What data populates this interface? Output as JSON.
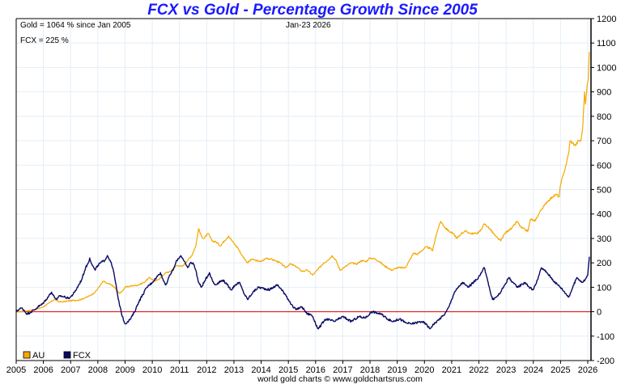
{
  "chart_data": {
    "type": "line",
    "title": "FCX vs Gold - Percentage Growth Since 2005",
    "xlabel": "",
    "ylabel": "",
    "xlim": [
      2005,
      2026.1
    ],
    "ylim": [
      -200,
      1200
    ],
    "grid": true,
    "legend_position": "bottom-left",
    "x_ticks": [
      "2005",
      "2006",
      "2007",
      "2008",
      "2009",
      "2010",
      "2011",
      "2012",
      "2013",
      "2014",
      "2015",
      "2016",
      "2017",
      "2018",
      "2019",
      "2020",
      "2021",
      "2022",
      "2023",
      "2024",
      "2025",
      "2026"
    ],
    "y_ticks": [
      "1200",
      "1100",
      "1000",
      "900",
      "800",
      "700",
      "600",
      "500",
      "400",
      "300",
      "200",
      "100",
      "0",
      "-100",
      "-200"
    ],
    "annotations": {
      "gold_summary": "Gold = 1064 % since Jan 2005",
      "fcx_summary": "FCX = 225 %",
      "date": "Jan-23  2026"
    },
    "credit": "world gold charts © www.goldchartsrus.com",
    "baseline": 0,
    "series": [
      {
        "name": "AU",
        "color": "#f5a800",
        "points": [
          [
            2005.0,
            0
          ],
          [
            2005.3,
            2
          ],
          [
            2005.5,
            5
          ],
          [
            2005.8,
            12
          ],
          [
            2006.0,
            20
          ],
          [
            2006.2,
            35
          ],
          [
            2006.4,
            50
          ],
          [
            2006.6,
            40
          ],
          [
            2006.8,
            42
          ],
          [
            2007.0,
            45
          ],
          [
            2007.3,
            48
          ],
          [
            2007.5,
            55
          ],
          [
            2007.7,
            65
          ],
          [
            2007.9,
            80
          ],
          [
            2008.1,
            110
          ],
          [
            2008.2,
            125
          ],
          [
            2008.35,
            115
          ],
          [
            2008.5,
            110
          ],
          [
            2008.65,
            95
          ],
          [
            2008.8,
            75
          ],
          [
            2008.9,
            85
          ],
          [
            2009.0,
            100
          ],
          [
            2009.2,
            105
          ],
          [
            2009.5,
            110
          ],
          [
            2009.7,
            120
          ],
          [
            2009.9,
            140
          ],
          [
            2010.1,
            125
          ],
          [
            2010.2,
            130
          ],
          [
            2010.4,
            150
          ],
          [
            2010.5,
            160
          ],
          [
            2010.7,
            165
          ],
          [
            2010.9,
            190
          ],
          [
            2011.1,
            185
          ],
          [
            2011.3,
            210
          ],
          [
            2011.45,
            230
          ],
          [
            2011.6,
            270
          ],
          [
            2011.7,
            340
          ],
          [
            2011.8,
            310
          ],
          [
            2011.9,
            300
          ],
          [
            2012.05,
            320
          ],
          [
            2012.2,
            290
          ],
          [
            2012.35,
            285
          ],
          [
            2012.5,
            270
          ],
          [
            2012.65,
            290
          ],
          [
            2012.8,
            310
          ],
          [
            2012.9,
            295
          ],
          [
            2013.0,
            280
          ],
          [
            2013.15,
            260
          ],
          [
            2013.3,
            230
          ],
          [
            2013.5,
            200
          ],
          [
            2013.65,
            215
          ],
          [
            2013.8,
            210
          ],
          [
            2014.0,
            205
          ],
          [
            2014.2,
            220
          ],
          [
            2014.35,
            215
          ],
          [
            2014.5,
            210
          ],
          [
            2014.7,
            200
          ],
          [
            2014.9,
            180
          ],
          [
            2015.05,
            195
          ],
          [
            2015.2,
            190
          ],
          [
            2015.35,
            180
          ],
          [
            2015.5,
            165
          ],
          [
            2015.7,
            170
          ],
          [
            2015.9,
            150
          ],
          [
            2016.1,
            175
          ],
          [
            2016.3,
            200
          ],
          [
            2016.5,
            215
          ],
          [
            2016.6,
            230
          ],
          [
            2016.75,
            210
          ],
          [
            2016.9,
            170
          ],
          [
            2017.1,
            185
          ],
          [
            2017.3,
            200
          ],
          [
            2017.5,
            195
          ],
          [
            2017.7,
            210
          ],
          [
            2017.85,
            205
          ],
          [
            2018.0,
            220
          ],
          [
            2018.2,
            215
          ],
          [
            2018.35,
            205
          ],
          [
            2018.5,
            190
          ],
          [
            2018.65,
            180
          ],
          [
            2018.8,
            170
          ],
          [
            2019.0,
            180
          ],
          [
            2019.3,
            180
          ],
          [
            2019.45,
            210
          ],
          [
            2019.6,
            240
          ],
          [
            2019.75,
            235
          ],
          [
            2019.9,
            250
          ],
          [
            2020.05,
            265
          ],
          [
            2020.2,
            260
          ],
          [
            2020.3,
            250
          ],
          [
            2020.4,
            300
          ],
          [
            2020.5,
            340
          ],
          [
            2020.6,
            370
          ],
          [
            2020.75,
            345
          ],
          [
            2020.9,
            330
          ],
          [
            2021.05,
            320
          ],
          [
            2021.2,
            300
          ],
          [
            2021.35,
            320
          ],
          [
            2021.5,
            330
          ],
          [
            2021.7,
            320
          ],
          [
            2021.9,
            320
          ],
          [
            2022.05,
            330
          ],
          [
            2022.2,
            360
          ],
          [
            2022.4,
            340
          ],
          [
            2022.6,
            310
          ],
          [
            2022.7,
            300
          ],
          [
            2022.8,
            290
          ],
          [
            2022.95,
            320
          ],
          [
            2023.1,
            335
          ],
          [
            2023.2,
            340
          ],
          [
            2023.3,
            355
          ],
          [
            2023.4,
            370
          ],
          [
            2023.55,
            345
          ],
          [
            2023.7,
            335
          ],
          [
            2023.8,
            330
          ],
          [
            2023.9,
            380
          ],
          [
            2024.05,
            370
          ],
          [
            2024.2,
            400
          ],
          [
            2024.3,
            420
          ],
          [
            2024.45,
            440
          ],
          [
            2024.5,
            450
          ],
          [
            2024.7,
            470
          ],
          [
            2024.85,
            480
          ],
          [
            2024.95,
            470
          ],
          [
            2025.0,
            520
          ],
          [
            2025.1,
            560
          ],
          [
            2025.2,
            600
          ],
          [
            2025.3,
            650
          ],
          [
            2025.35,
            700
          ],
          [
            2025.45,
            690
          ],
          [
            2025.55,
            680
          ],
          [
            2025.65,
            700
          ],
          [
            2025.75,
            700
          ],
          [
            2025.82,
            760
          ],
          [
            2025.88,
            900
          ],
          [
            2025.92,
            850
          ],
          [
            2025.97,
            920
          ],
          [
            2026.02,
            950
          ],
          [
            2026.06,
            1064
          ]
        ]
      },
      {
        "name": "FCX",
        "color": "#0a0a64",
        "points": [
          [
            2005.0,
            0
          ],
          [
            2005.1,
            10
          ],
          [
            2005.2,
            15
          ],
          [
            2005.3,
            5
          ],
          [
            2005.4,
            -10
          ],
          [
            2005.55,
            0
          ],
          [
            2005.7,
            10
          ],
          [
            2005.8,
            20
          ],
          [
            2005.95,
            30
          ],
          [
            2006.1,
            50
          ],
          [
            2006.2,
            65
          ],
          [
            2006.3,
            80
          ],
          [
            2006.4,
            60
          ],
          [
            2006.5,
            50
          ],
          [
            2006.6,
            65
          ],
          [
            2006.8,
            60
          ],
          [
            2006.9,
            55
          ],
          [
            2007.0,
            60
          ],
          [
            2007.15,
            80
          ],
          [
            2007.3,
            110
          ],
          [
            2007.4,
            130
          ],
          [
            2007.55,
            180
          ],
          [
            2007.65,
            200
          ],
          [
            2007.7,
            220
          ],
          [
            2007.8,
            190
          ],
          [
            2007.9,
            170
          ],
          [
            2008.0,
            190
          ],
          [
            2008.1,
            200
          ],
          [
            2008.25,
            210
          ],
          [
            2008.35,
            230
          ],
          [
            2008.45,
            210
          ],
          [
            2008.55,
            180
          ],
          [
            2008.65,
            120
          ],
          [
            2008.75,
            50
          ],
          [
            2008.82,
            20
          ],
          [
            2008.9,
            -20
          ],
          [
            2009.0,
            -50
          ],
          [
            2009.1,
            -40
          ],
          [
            2009.2,
            -30
          ],
          [
            2009.35,
            0
          ],
          [
            2009.5,
            40
          ],
          [
            2009.65,
            70
          ],
          [
            2009.8,
            100
          ],
          [
            2009.9,
            110
          ],
          [
            2010.0,
            120
          ],
          [
            2010.15,
            140
          ],
          [
            2010.3,
            160
          ],
          [
            2010.4,
            130
          ],
          [
            2010.5,
            110
          ],
          [
            2010.65,
            150
          ],
          [
            2010.8,
            180
          ],
          [
            2010.9,
            210
          ],
          [
            2011.05,
            230
          ],
          [
            2011.15,
            210
          ],
          [
            2011.3,
            180
          ],
          [
            2011.4,
            200
          ],
          [
            2011.5,
            200
          ],
          [
            2011.6,
            170
          ],
          [
            2011.7,
            120
          ],
          [
            2011.8,
            100
          ],
          [
            2011.95,
            130
          ],
          [
            2012.1,
            160
          ],
          [
            2012.2,
            130
          ],
          [
            2012.3,
            110
          ],
          [
            2012.45,
            120
          ],
          [
            2012.6,
            130
          ],
          [
            2012.75,
            110
          ],
          [
            2012.9,
            90
          ],
          [
            2013.05,
            110
          ],
          [
            2013.2,
            120
          ],
          [
            2013.35,
            80
          ],
          [
            2013.5,
            50
          ],
          [
            2013.7,
            80
          ],
          [
            2013.9,
            100
          ],
          [
            2014.1,
            95
          ],
          [
            2014.3,
            90
          ],
          [
            2014.45,
            100
          ],
          [
            2014.6,
            110
          ],
          [
            2014.75,
            90
          ],
          [
            2014.9,
            70
          ],
          [
            2015.0,
            50
          ],
          [
            2015.1,
            30
          ],
          [
            2015.2,
            15
          ],
          [
            2015.3,
            10
          ],
          [
            2015.4,
            15
          ],
          [
            2015.5,
            20
          ],
          [
            2015.6,
            5
          ],
          [
            2015.7,
            -10
          ],
          [
            2015.8,
            -10
          ],
          [
            2015.9,
            -20
          ],
          [
            2016.0,
            -50
          ],
          [
            2016.1,
            -70
          ],
          [
            2016.2,
            -55
          ],
          [
            2016.3,
            -40
          ],
          [
            2016.4,
            -30
          ],
          [
            2016.55,
            -35
          ],
          [
            2016.7,
            -40
          ],
          [
            2016.85,
            -30
          ],
          [
            2017.0,
            -20
          ],
          [
            2017.15,
            -30
          ],
          [
            2017.3,
            -40
          ],
          [
            2017.45,
            -30
          ],
          [
            2017.6,
            -20
          ],
          [
            2017.75,
            -25
          ],
          [
            2017.9,
            -20
          ],
          [
            2018.0,
            -5
          ],
          [
            2018.1,
            0
          ],
          [
            2018.25,
            -5
          ],
          [
            2018.4,
            -10
          ],
          [
            2018.6,
            -25
          ],
          [
            2018.8,
            -40
          ],
          [
            2018.95,
            -35
          ],
          [
            2019.1,
            -30
          ],
          [
            2019.3,
            -45
          ],
          [
            2019.5,
            -50
          ],
          [
            2019.7,
            -45
          ],
          [
            2019.9,
            -40
          ],
          [
            2020.05,
            -50
          ],
          [
            2020.2,
            -70
          ],
          [
            2020.3,
            -55
          ],
          [
            2020.45,
            -40
          ],
          [
            2020.55,
            -30
          ],
          [
            2020.7,
            -15
          ],
          [
            2020.8,
            0
          ],
          [
            2020.9,
            20
          ],
          [
            2021.0,
            50
          ],
          [
            2021.1,
            80
          ],
          [
            2021.25,
            100
          ],
          [
            2021.4,
            120
          ],
          [
            2021.5,
            110
          ],
          [
            2021.6,
            100
          ],
          [
            2021.75,
            115
          ],
          [
            2021.9,
            130
          ],
          [
            2022.05,
            150
          ],
          [
            2022.2,
            180
          ],
          [
            2022.3,
            140
          ],
          [
            2022.4,
            90
          ],
          [
            2022.5,
            50
          ],
          [
            2022.65,
            60
          ],
          [
            2022.8,
            80
          ],
          [
            2022.95,
            110
          ],
          [
            2023.1,
            140
          ],
          [
            2023.25,
            120
          ],
          [
            2023.4,
            100
          ],
          [
            2023.55,
            110
          ],
          [
            2023.7,
            120
          ],
          [
            2023.85,
            100
          ],
          [
            2024.0,
            90
          ],
          [
            2024.15,
            130
          ],
          [
            2024.3,
            180
          ],
          [
            2024.4,
            170
          ],
          [
            2024.5,
            160
          ],
          [
            2024.65,
            140
          ],
          [
            2024.8,
            120
          ],
          [
            2024.9,
            110
          ],
          [
            2025.0,
            100
          ],
          [
            2025.15,
            80
          ],
          [
            2025.3,
            60
          ],
          [
            2025.45,
            100
          ],
          [
            2025.6,
            140
          ],
          [
            2025.7,
            130
          ],
          [
            2025.8,
            120
          ],
          [
            2025.9,
            130
          ],
          [
            2026.0,
            150
          ],
          [
            2026.03,
            190
          ],
          [
            2026.06,
            225
          ]
        ]
      }
    ]
  }
}
